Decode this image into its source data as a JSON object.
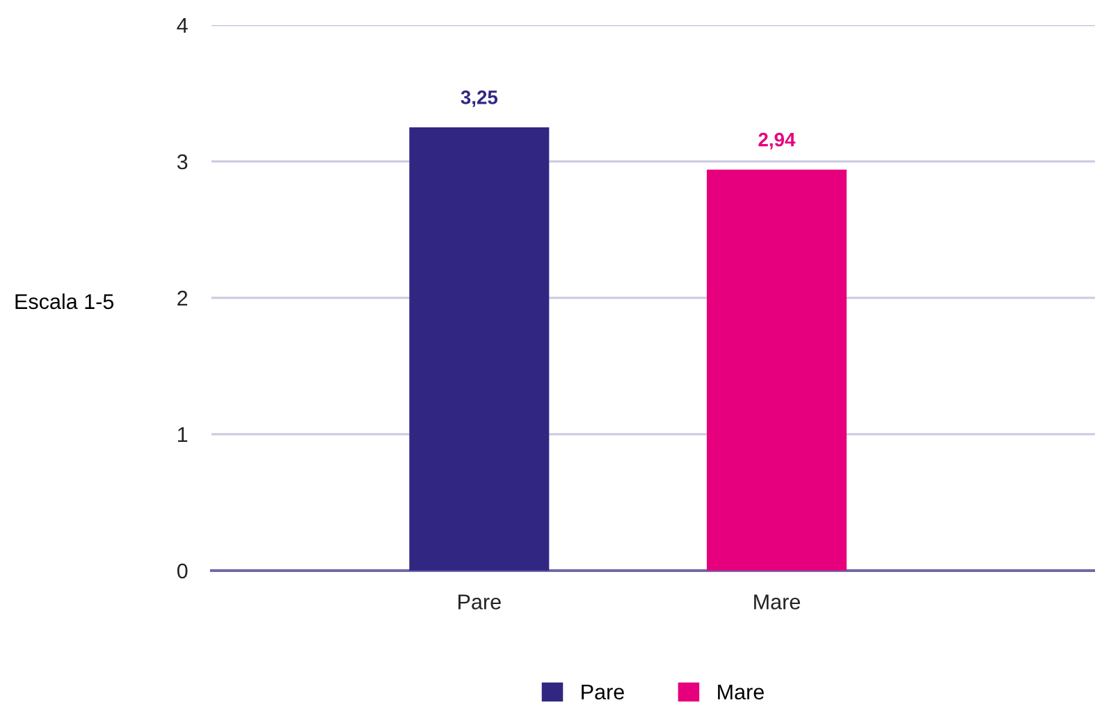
{
  "chart_data": {
    "type": "bar",
    "ylabel": "Escala 1-5",
    "categories": [
      "Pare",
      "Mare"
    ],
    "series": [
      {
        "name": "Pare",
        "color": "#312783",
        "values": [
          3.25,
          null
        ],
        "value_labels": [
          "3,25",
          null
        ]
      },
      {
        "name": "Mare",
        "color": "#e6007e",
        "values": [
          null,
          2.94
        ],
        "value_labels": [
          null,
          "2,94"
        ]
      }
    ],
    "ylim": [
      0,
      4
    ],
    "yticks": [
      0,
      1,
      2,
      3,
      4
    ],
    "grid": "y",
    "legend": "bottom"
  }
}
